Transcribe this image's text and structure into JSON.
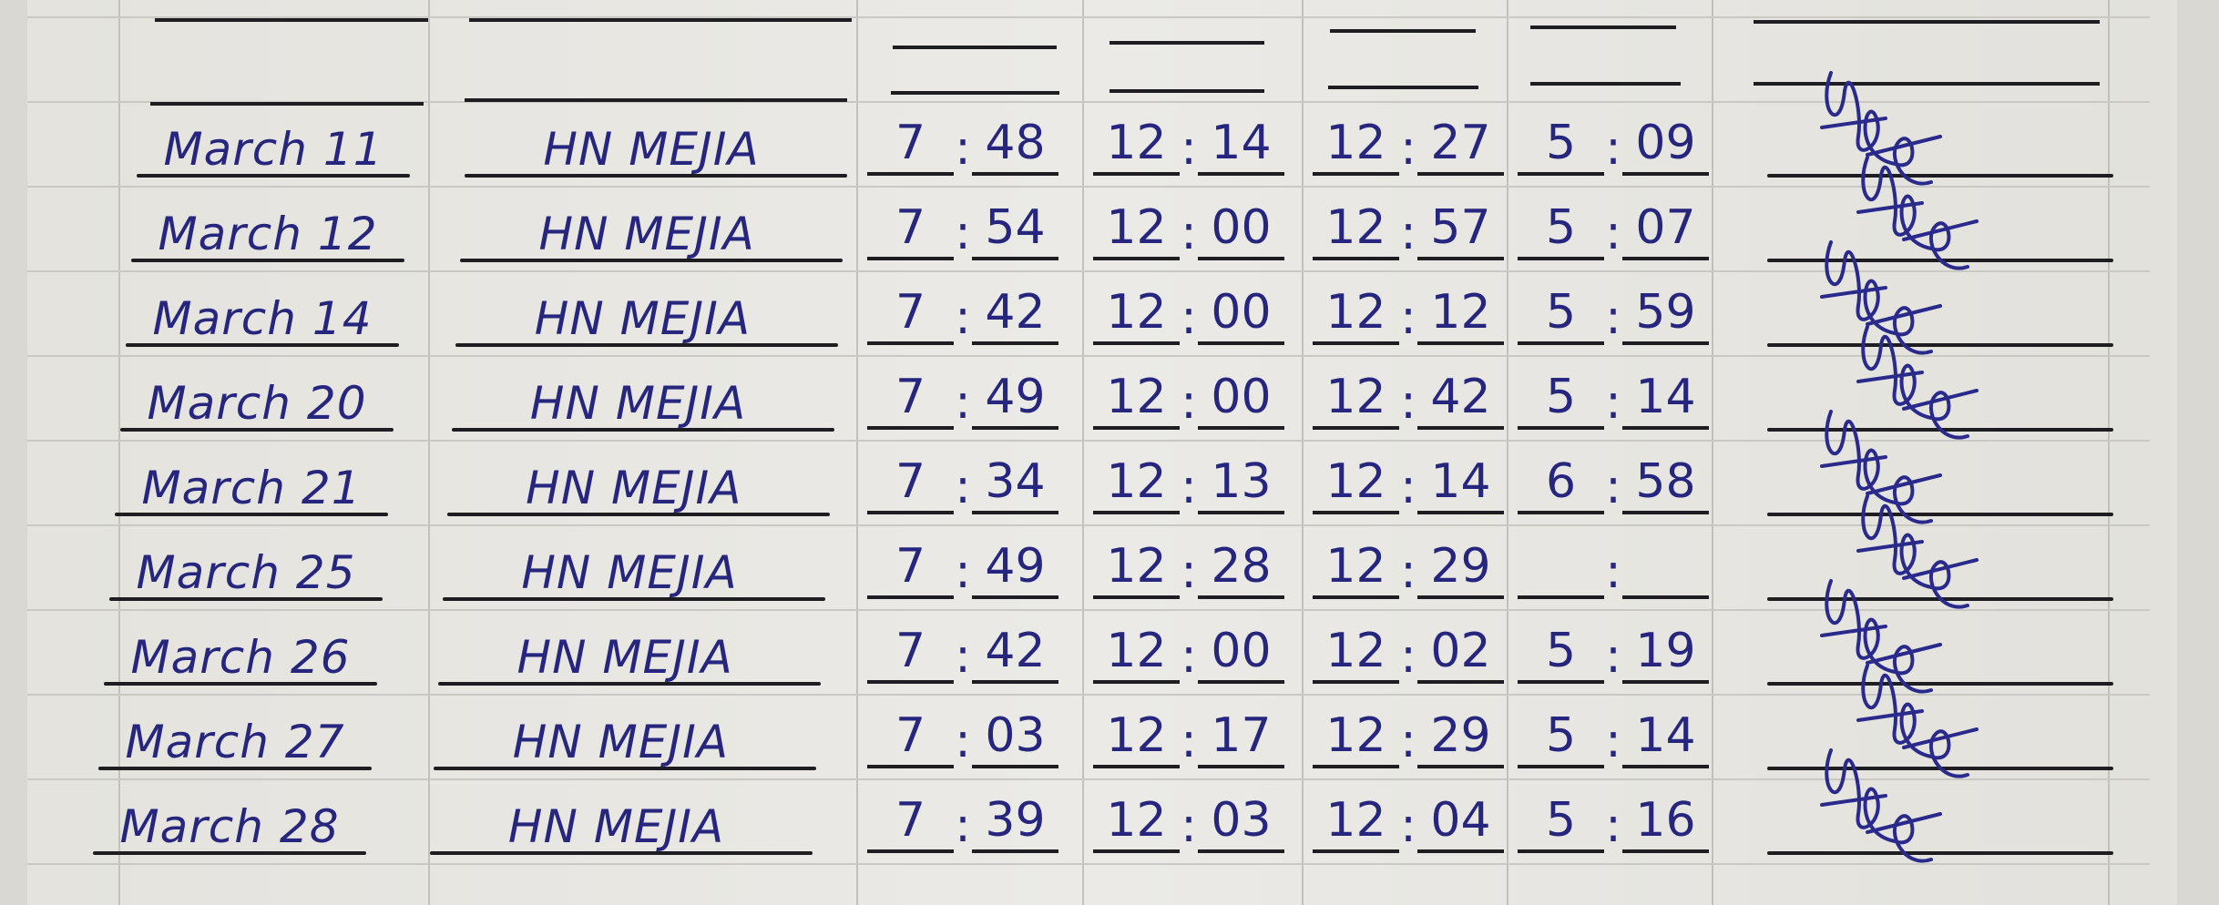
{
  "ink_color": "#26267e",
  "rows": [
    {
      "date": "March 11",
      "name": "HN MEJIA",
      "time_in": [
        "7",
        "48"
      ],
      "lunch_out": [
        "12",
        "14"
      ],
      "lunch_in": [
        "12",
        "27"
      ],
      "time_out": [
        "5",
        "09"
      ],
      "signature": true
    },
    {
      "date": "March 12",
      "name": "HN MEJIA",
      "time_in": [
        "7",
        "54"
      ],
      "lunch_out": [
        "12",
        "00"
      ],
      "lunch_in": [
        "12",
        "57"
      ],
      "time_out": [
        "5",
        "07"
      ],
      "signature": true
    },
    {
      "date": "March 14",
      "name": "HN MEJIA",
      "time_in": [
        "7",
        "42"
      ],
      "lunch_out": [
        "12",
        "00"
      ],
      "lunch_in": [
        "12",
        "12"
      ],
      "time_out": [
        "5",
        "59"
      ],
      "signature": true
    },
    {
      "date": "March 20",
      "name": "HN MEJIA",
      "time_in": [
        "7",
        "49"
      ],
      "lunch_out": [
        "12",
        "00"
      ],
      "lunch_in": [
        "12",
        "42"
      ],
      "time_out": [
        "5",
        "14"
      ],
      "signature": true
    },
    {
      "date": "March 21",
      "name": "HN MEJIA",
      "time_in": [
        "7",
        "34"
      ],
      "lunch_out": [
        "12",
        "13"
      ],
      "lunch_in": [
        "12",
        "14"
      ],
      "time_out": [
        "6",
        "58"
      ],
      "signature": true
    },
    {
      "date": "March 25",
      "name": "HN MEJIA",
      "time_in": [
        "7",
        "49"
      ],
      "lunch_out": [
        "12",
        "28"
      ],
      "lunch_in": [
        "12",
        "29"
      ],
      "time_out": [
        "",
        ""
      ],
      "signature": true
    },
    {
      "date": "March 26",
      "name": "HN MEJIA",
      "time_in": [
        "7",
        "42"
      ],
      "lunch_out": [
        "12",
        "00"
      ],
      "lunch_in": [
        "12",
        "02"
      ],
      "time_out": [
        "5",
        "19"
      ],
      "signature": true
    },
    {
      "date": "March 27",
      "name": "HN MEJIA",
      "time_in": [
        "7",
        "03"
      ],
      "lunch_out": [
        "12",
        "17"
      ],
      "lunch_in": [
        "12",
        "29"
      ],
      "time_out": [
        "5",
        "14"
      ],
      "signature": true
    },
    {
      "date": "March 28",
      "name": "HN MEJIA",
      "time_in": [
        "7",
        "39"
      ],
      "lunch_out": [
        "12",
        "03"
      ],
      "lunch_in": [
        "12",
        "04"
      ],
      "time_out": [
        "5",
        "16"
      ],
      "signature": true
    }
  ]
}
